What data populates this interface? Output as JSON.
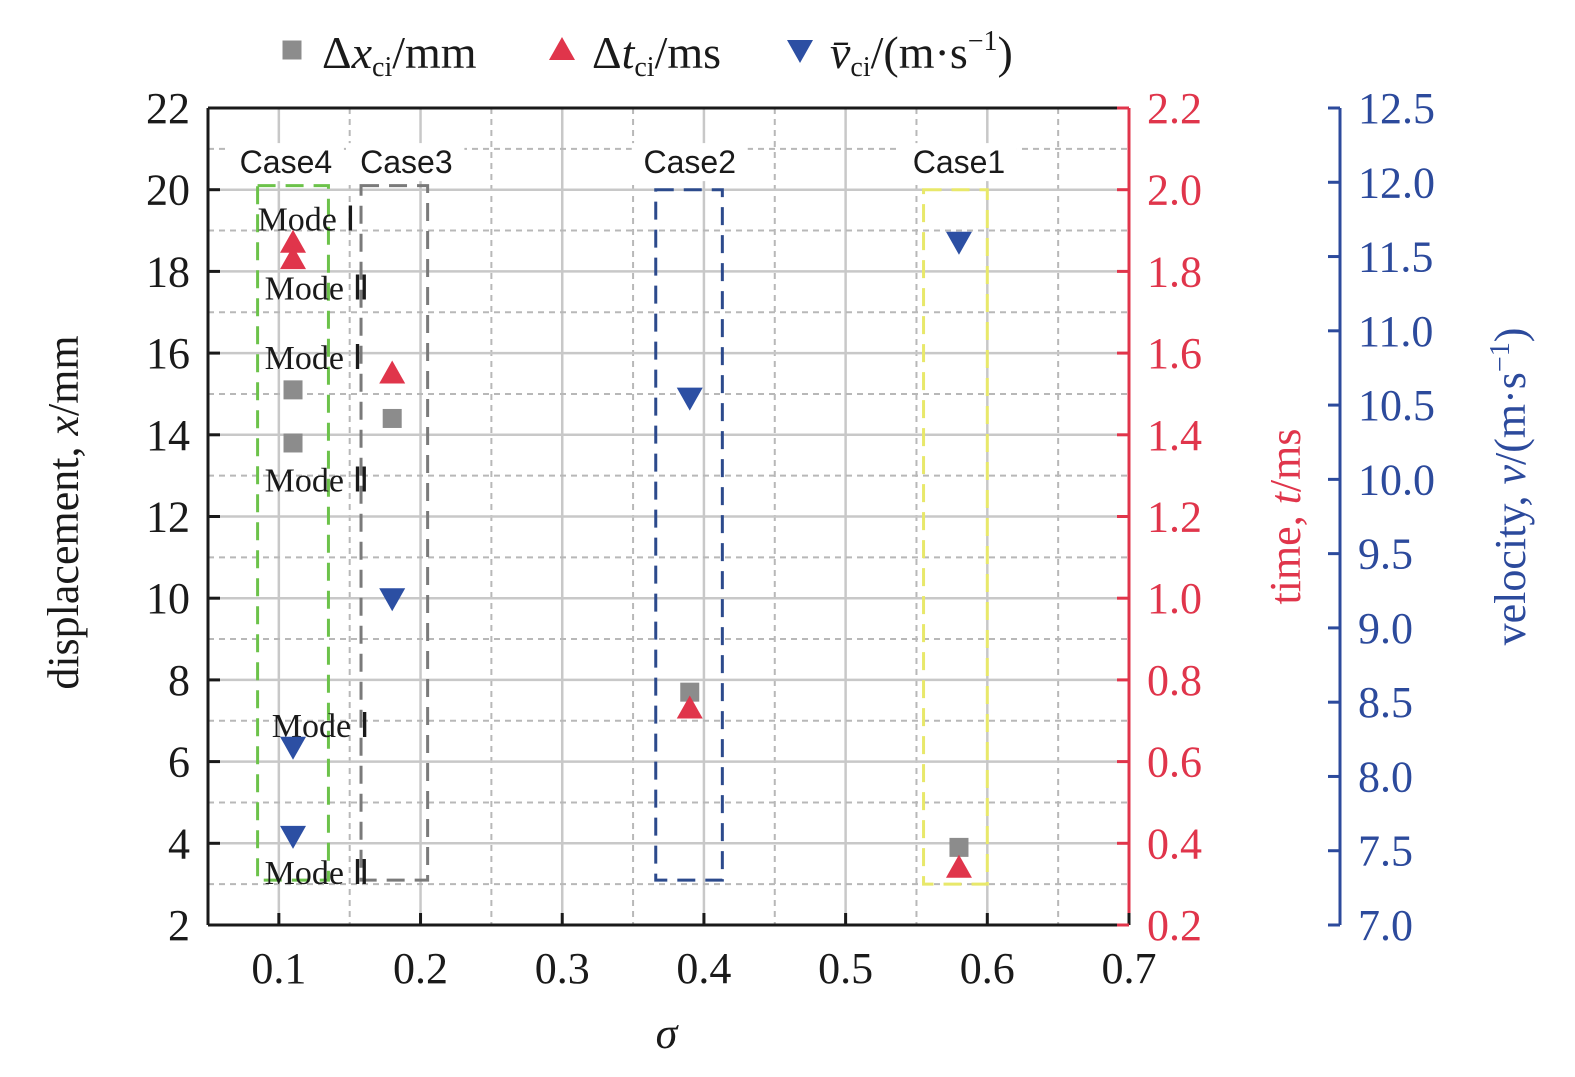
{
  "chart_data": {
    "type": "scatter",
    "xlabel": "σ",
    "ylabel": "displacement, x/mm",
    "ylabel_parts": {
      "pre": "displacement, ",
      "var": "x",
      "post": "/mm"
    },
    "y2label": "time, t/ms",
    "y2label_parts": {
      "pre": "time, ",
      "var": "t",
      "post": "/ms"
    },
    "y3label": "velocity, v/(m·s⁻¹)",
    "y3label_parts": {
      "pre": "velocity, ",
      "var": "v",
      "post": "/(m·s",
      "sup": "−1",
      "close": ")"
    },
    "xlim": [
      0.05,
      0.7
    ],
    "ylim": [
      2,
      22
    ],
    "y2lim": [
      0.2,
      2.2
    ],
    "y3lim": [
      7.0,
      12.5
    ],
    "x_ticks": [
      "0.1",
      "0.2",
      "0.3",
      "0.4",
      "0.5",
      "0.6",
      "0.7"
    ],
    "y_ticks": [
      "2",
      "4",
      "6",
      "8",
      "10",
      "12",
      "14",
      "16",
      "18",
      "20",
      "22"
    ],
    "y2_ticks": [
      "0.2",
      "0.4",
      "0.6",
      "0.8",
      "1.0",
      "1.2",
      "1.4",
      "1.6",
      "1.8",
      "2.0",
      "2.2"
    ],
    "y3_ticks": [
      "7.0",
      "7.5",
      "8.0",
      "8.5",
      "9.0",
      "9.5",
      "10.0",
      "10.5",
      "11.0",
      "11.5",
      "12.0",
      "12.5"
    ],
    "grid": true,
    "legend_position": "top",
    "series": [
      {
        "name": "Δx_ci/mm",
        "legend_main": "Δx",
        "legend_sub": "ci",
        "legend_tail": "/mm",
        "axis": "left",
        "marker": "square",
        "color": "#8c8c8c",
        "points": [
          [
            0.11,
            15.1
          ],
          [
            0.11,
            13.8
          ],
          [
            0.18,
            14.4
          ],
          [
            0.39,
            7.7
          ],
          [
            0.58,
            3.9
          ]
        ]
      },
      {
        "name": "Δt_ci/ms",
        "legend_main": "Δt",
        "legend_sub": "ci",
        "legend_tail": "/ms",
        "axis": "right",
        "marker": "triangle-up",
        "color": "#e0354b",
        "points": [
          [
            0.11,
            1.87
          ],
          [
            0.11,
            1.83
          ],
          [
            0.18,
            1.55
          ],
          [
            0.39,
            0.73
          ],
          [
            0.58,
            0.34
          ]
        ]
      },
      {
        "name": "v̄_ci/(m·s⁻¹)",
        "legend_main": "v̄",
        "legend_sub": "ci",
        "legend_tail": "/(m·s",
        "legend_sup": "−1",
        "legend_close": ")",
        "axis": "third",
        "marker": "triangle-down",
        "color": "#2c4fa3",
        "points": [
          [
            0.11,
            8.2
          ],
          [
            0.11,
            7.6
          ],
          [
            0.18,
            9.2
          ],
          [
            0.39,
            10.55
          ],
          [
            0.58,
            11.6
          ]
        ]
      }
    ],
    "cases": [
      {
        "label": "Case4",
        "x_center": 0.105,
        "x_range": [
          0.085,
          0.135
        ],
        "y_range": [
          3.1,
          20.1
        ],
        "color": "#6cc24a"
      },
      {
        "label": "Case3",
        "x_center": 0.19,
        "x_range": [
          0.158,
          0.205
        ],
        "y_range": [
          3.1,
          20.1
        ],
        "color": "#7a7a7a"
      },
      {
        "label": "Case2",
        "x_center": 0.39,
        "x_range": [
          0.366,
          0.413
        ],
        "y_range": [
          3.1,
          20.0
        ],
        "color": "#2c4a8c"
      },
      {
        "label": "Case1",
        "x_center": 0.58,
        "x_range": [
          0.555,
          0.6
        ],
        "y_range": [
          3.0,
          20.0
        ],
        "color": "#e8e86a"
      }
    ],
    "modes": [
      {
        "label": "Mode Ⅰ",
        "x": 0.085,
        "y": 19.3
      },
      {
        "label": "Mode Ⅱ",
        "x": 0.09,
        "y": 17.6
      },
      {
        "label": "Mode Ⅰ",
        "x": 0.09,
        "y": 15.9
      },
      {
        "label": "Mode Ⅱ",
        "x": 0.09,
        "y": 12.9
      },
      {
        "label": "Mode Ⅰ",
        "x": 0.095,
        "y": 6.9
      },
      {
        "label": "Mode Ⅱ",
        "x": 0.09,
        "y": 3.3
      }
    ]
  }
}
